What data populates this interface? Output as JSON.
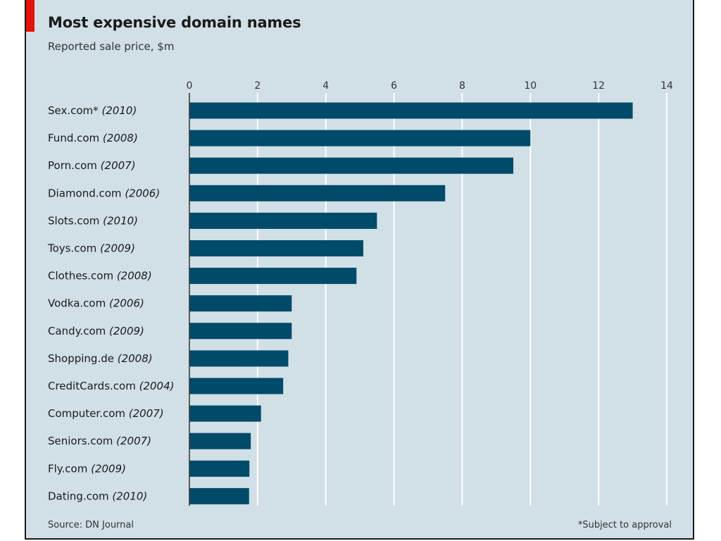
{
  "chart_data": {
    "type": "bar",
    "orientation": "horizontal",
    "title": "Most expensive domain names",
    "subtitle": "Reported sale price, $m",
    "categories": [
      {
        "name": "Sex.com*",
        "year": "(2010)"
      },
      {
        "name": "Fund.com",
        "year": "(2008)"
      },
      {
        "name": "Porn.com",
        "year": "(2007)"
      },
      {
        "name": "Diamond.com",
        "year": "(2006)"
      },
      {
        "name": "Slots.com",
        "year": "(2010)"
      },
      {
        "name": "Toys.com",
        "year": "(2009)"
      },
      {
        "name": "Clothes.com",
        "year": "(2008)"
      },
      {
        "name": "Vodka.com",
        "year": "(2006)"
      },
      {
        "name": "Candy.com",
        "year": "(2009)"
      },
      {
        "name": "Shopping.de",
        "year": "(2008)"
      },
      {
        "name": "CreditCards.com",
        "year": "(2004)"
      },
      {
        "name": "Computer.com",
        "year": "(2007)"
      },
      {
        "name": "Seniors.com",
        "year": "(2007)"
      },
      {
        "name": "Fly.com",
        "year": "(2009)"
      },
      {
        "name": "Dating.com",
        "year": "(2010)"
      }
    ],
    "values": [
      13.0,
      10.0,
      9.5,
      7.5,
      5.5,
      5.1,
      4.9,
      3.0,
      3.0,
      2.9,
      2.75,
      2.1,
      1.8,
      1.76,
      1.75
    ],
    "xlim": [
      0,
      14
    ],
    "xticks": [
      0,
      2,
      4,
      6,
      8,
      10,
      12,
      14
    ],
    "xaxis_position": "top",
    "grid": true,
    "legend": "none",
    "source": "Source: DN Journal",
    "footnote": "*Subject to approval",
    "colors": {
      "bar": "#004b69",
      "background": "#d1dfe6",
      "grid": "#ffffff",
      "accent": "#e3120b"
    }
  }
}
